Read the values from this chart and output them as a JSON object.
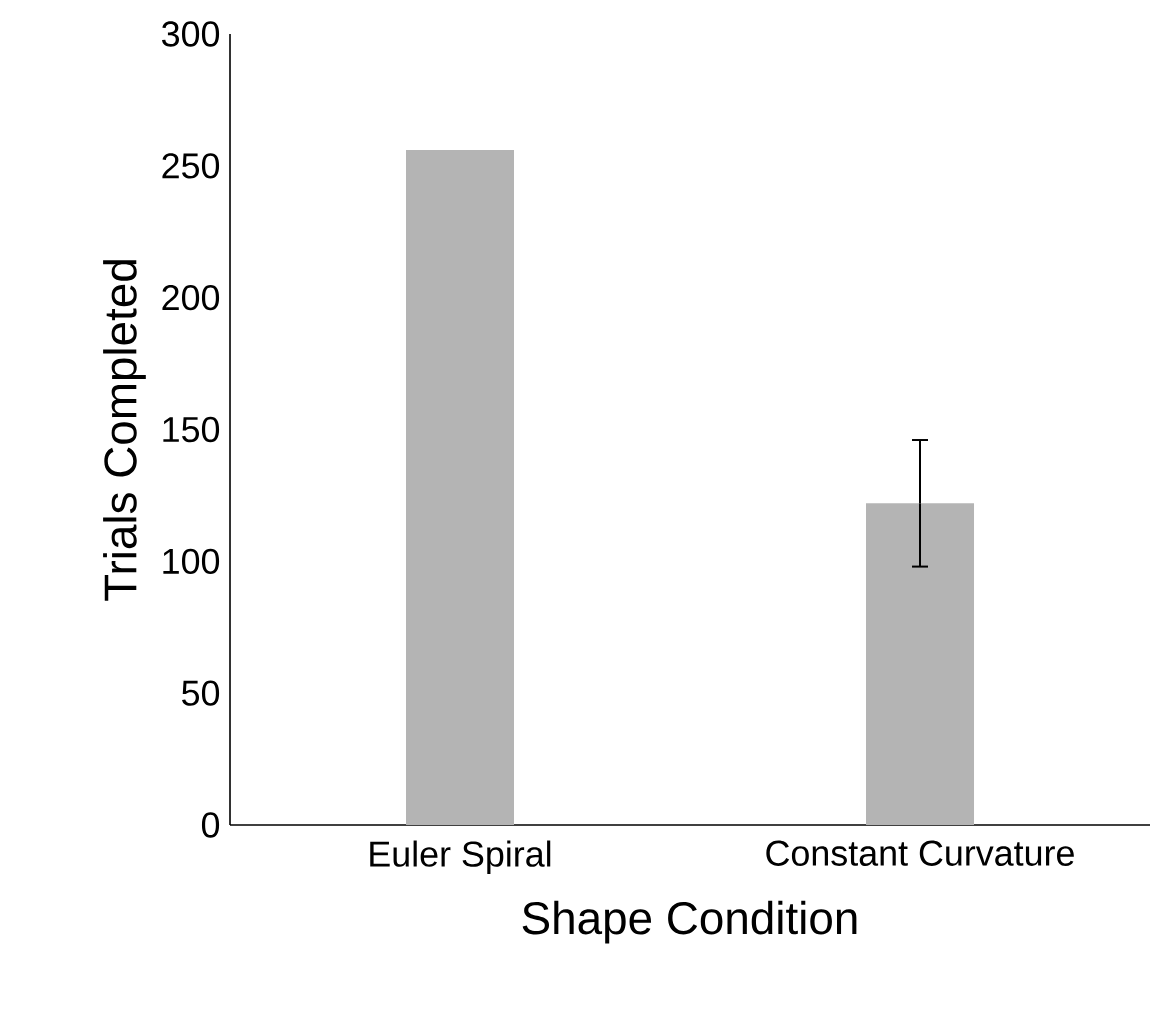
{
  "chart_data": {
    "type": "bar",
    "xlabel": "Shape Condition",
    "ylabel": "Trials Completed",
    "categories": [
      "Euler Spiral",
      "Constant Curvature"
    ],
    "values": [
      256,
      122
    ],
    "color": "#b4b4b4",
    "errors": [
      null,
      24
    ],
    "ylim": [
      0,
      300
    ],
    "yticks": [
      0,
      50,
      100,
      150,
      200,
      250,
      300
    ]
  }
}
